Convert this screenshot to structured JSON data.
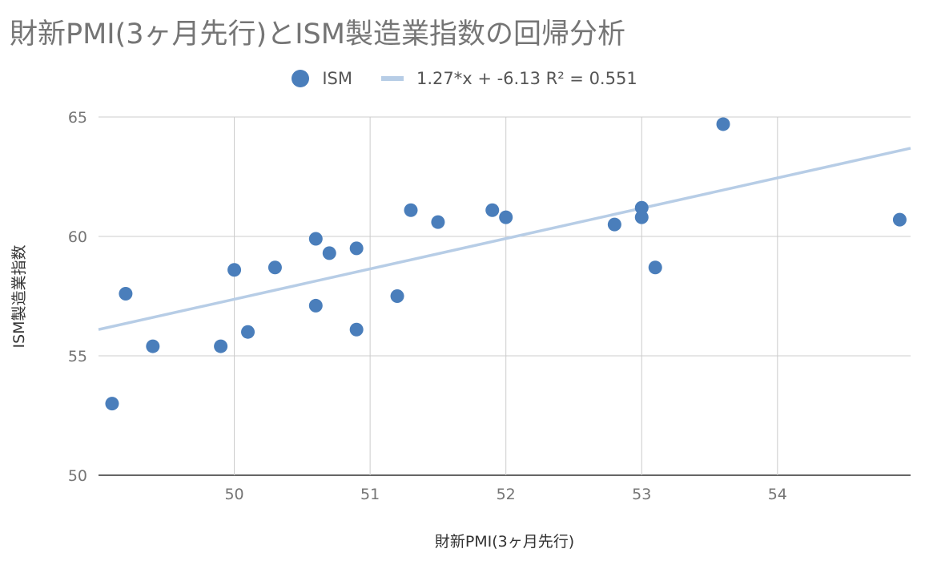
{
  "chart_data": {
    "type": "scatter",
    "title": "財新PMI(3ヶ月先行)とISM製造業指数の回帰分析",
    "xlabel": "財新PMI(3ヶ月先行)",
    "ylabel": "ISM製造業指数",
    "xlim": [
      49.0,
      54.98
    ],
    "ylim": [
      50,
      65
    ],
    "xticks": [
      50,
      51,
      52,
      53,
      54
    ],
    "yticks": [
      50,
      55,
      60,
      65
    ],
    "grid": true,
    "legend_position": "top-center",
    "series": [
      {
        "name": "ISM",
        "color": "#4a7ebb",
        "points": [
          [
            49.1,
            53.0
          ],
          [
            49.2,
            57.6
          ],
          [
            49.4,
            55.4
          ],
          [
            49.9,
            55.4
          ],
          [
            50.0,
            58.6
          ],
          [
            50.1,
            56.0
          ],
          [
            50.3,
            58.7
          ],
          [
            50.6,
            57.1
          ],
          [
            50.6,
            59.9
          ],
          [
            50.7,
            59.3
          ],
          [
            50.9,
            59.5
          ],
          [
            50.9,
            56.1
          ],
          [
            51.2,
            57.5
          ],
          [
            51.3,
            61.1
          ],
          [
            51.5,
            60.6
          ],
          [
            51.9,
            61.1
          ],
          [
            52.0,
            60.8
          ],
          [
            52.8,
            60.5
          ],
          [
            53.0,
            61.2
          ],
          [
            53.0,
            60.8
          ],
          [
            53.1,
            58.7
          ],
          [
            53.6,
            64.7
          ],
          [
            54.9,
            60.7
          ]
        ]
      }
    ],
    "trendline": {
      "label": "1.27*x + -6.13 R² = 0.551",
      "slope": 1.27,
      "intercept": -6.13,
      "r_squared": 0.551,
      "color": "#b7cde6"
    }
  }
}
